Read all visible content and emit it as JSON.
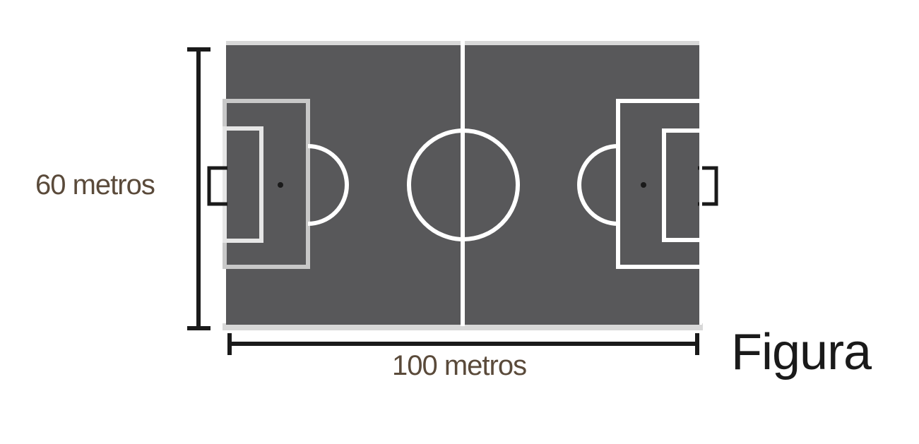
{
  "diagram": {
    "height_label": "60 metros",
    "width_label": "100 metros",
    "figure_label": "Figura"
  },
  "colors": {
    "pitch": "#58585a",
    "lines": "#ffffff",
    "dimension_lines": "#1a1a1a",
    "pitch_border": "#d8d8d8"
  }
}
